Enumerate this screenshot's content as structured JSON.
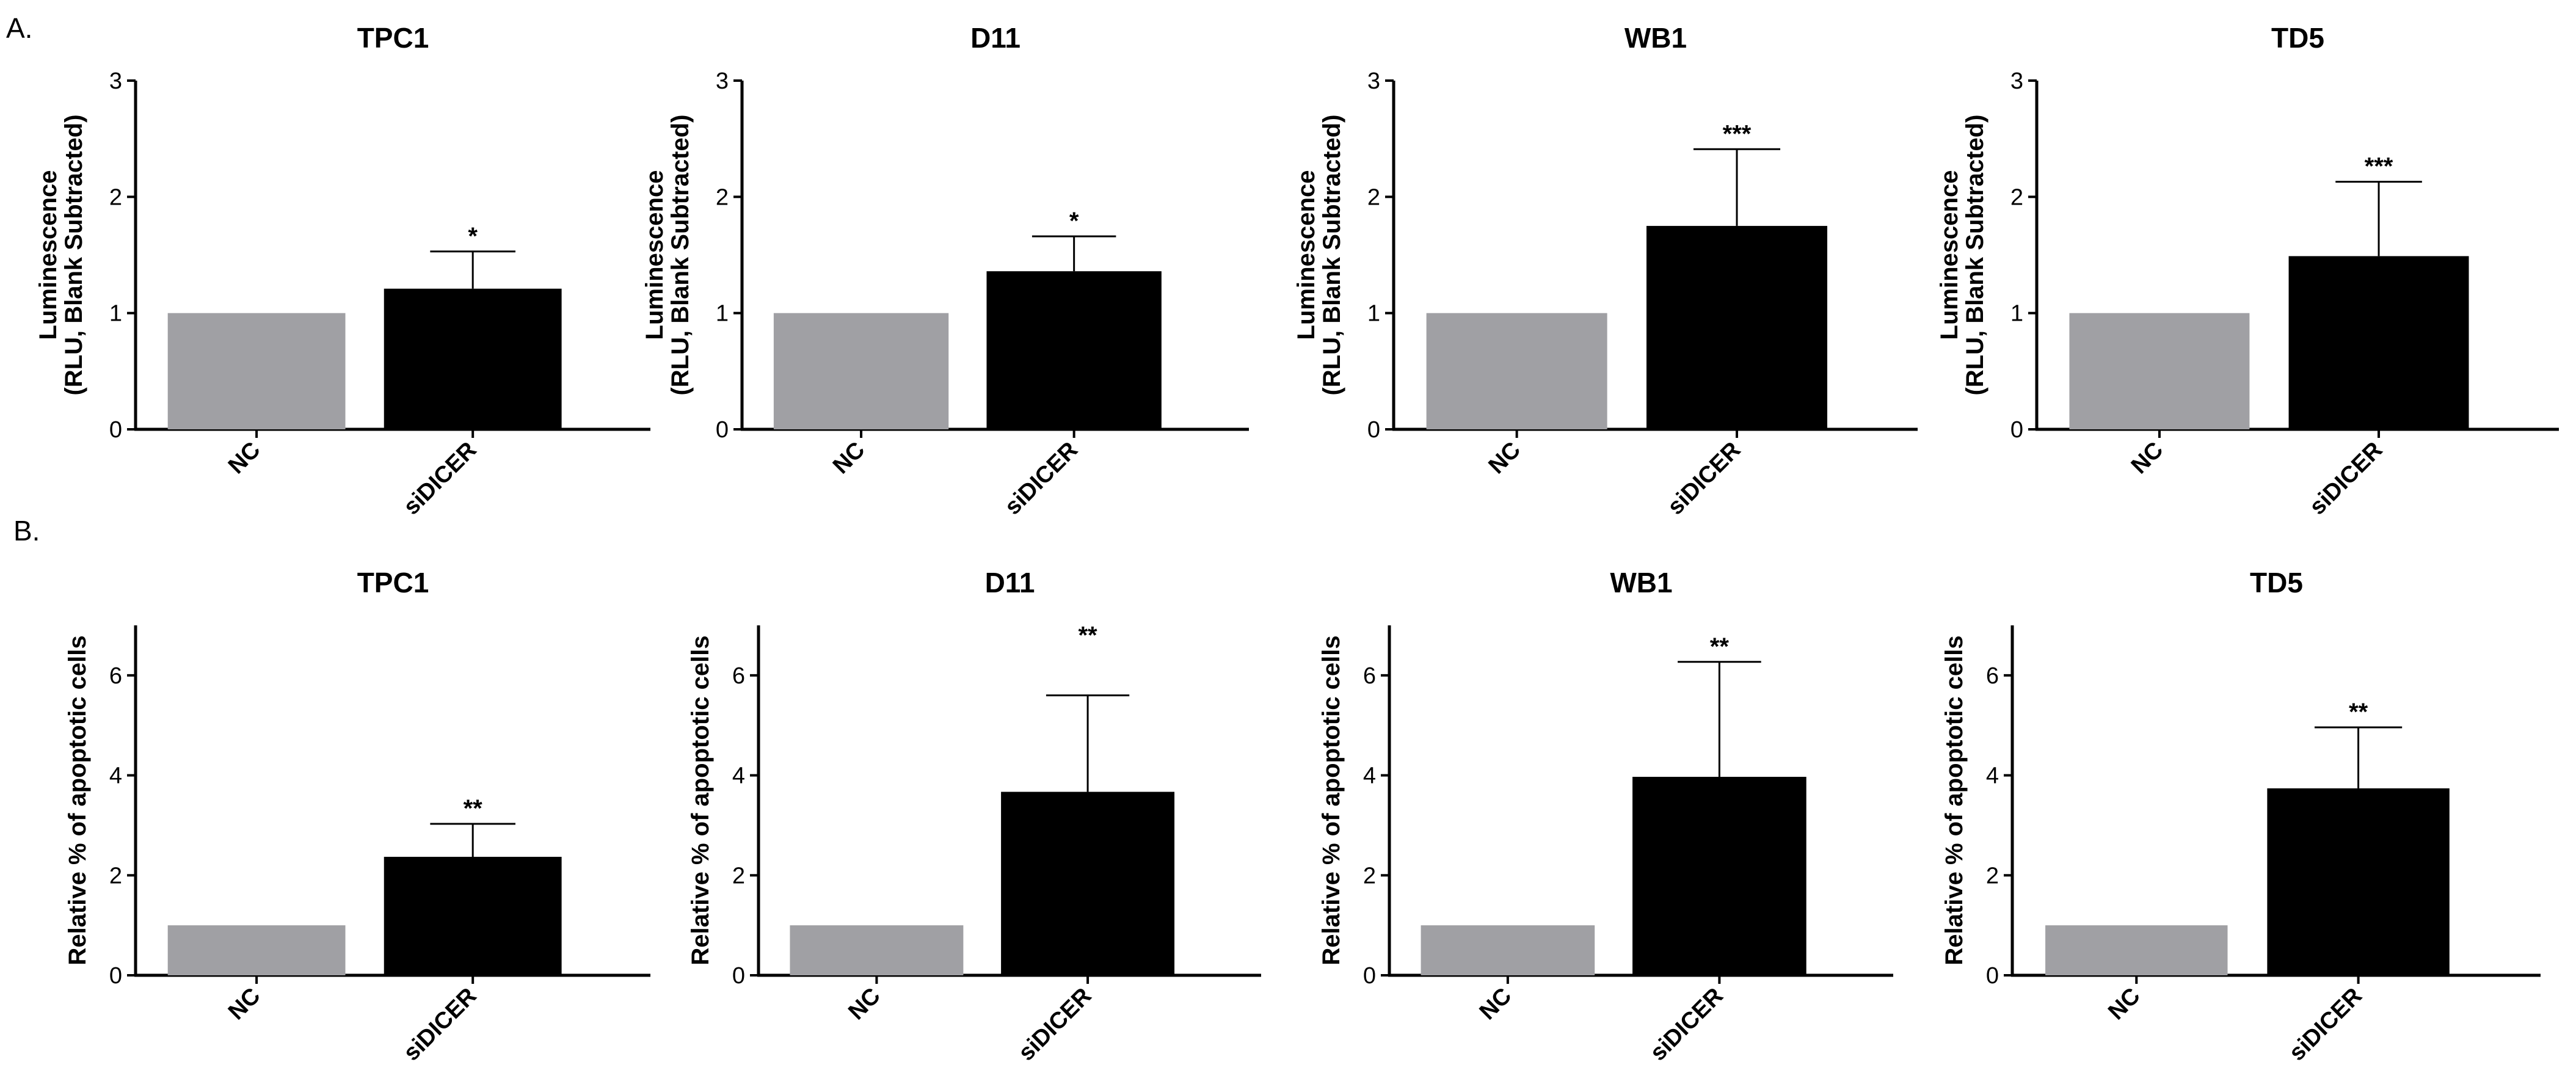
{
  "panel_labels": [
    "A.",
    "B."
  ],
  "colors": {
    "control_bar": "#a0a0a4",
    "treatment_bar": "#000000",
    "axis": "#000000"
  },
  "chart_data": [
    {
      "panel": "A.",
      "type": "bar",
      "title": "TPC1",
      "ylabel_lines": [
        "Luminescence",
        "(RLU, Blank Subtracted)"
      ],
      "categories": [
        "NC",
        "siDICER"
      ],
      "values": [
        1.0,
        1.21
      ],
      "errors": [
        0,
        0.32
      ],
      "significance": [
        "",
        "*"
      ],
      "ylim": [
        0,
        3
      ],
      "yticks": [
        0,
        1,
        2,
        3
      ]
    },
    {
      "panel": "A.",
      "type": "bar",
      "title": "D11",
      "ylabel_lines": [
        "Luminescence",
        "(RLU, Blank Subtracted)"
      ],
      "categories": [
        "NC",
        "siDICER"
      ],
      "values": [
        1.0,
        1.36
      ],
      "errors": [
        0,
        0.3
      ],
      "significance": [
        "",
        "*"
      ],
      "ylim": [
        0,
        3
      ],
      "yticks": [
        0,
        1,
        2,
        3
      ]
    },
    {
      "panel": "A.",
      "type": "bar",
      "title": "WB1",
      "ylabel_lines": [
        "Luminescence",
        "(RLU, Blank Subtracted)"
      ],
      "categories": [
        "NC",
        "siDICER"
      ],
      "values": [
        1.0,
        1.75
      ],
      "errors": [
        0,
        0.66
      ],
      "significance": [
        "",
        "***"
      ],
      "ylim": [
        0,
        3
      ],
      "yticks": [
        0,
        1,
        2,
        3
      ]
    },
    {
      "panel": "A.",
      "type": "bar",
      "title": "TD5",
      "ylabel_lines": [
        "Luminescence",
        "(RLU, Blank Subtracted)"
      ],
      "categories": [
        "NC",
        "siDICER"
      ],
      "values": [
        1.0,
        1.49
      ],
      "errors": [
        0,
        0.64
      ],
      "significance": [
        "",
        "***"
      ],
      "ylim": [
        0,
        3
      ],
      "yticks": [
        0,
        1,
        2,
        3
      ]
    },
    {
      "panel": "B.",
      "type": "bar",
      "title": "TPC1",
      "ylabel_lines": [
        "Relative % of apoptotic cells"
      ],
      "categories": [
        "NC",
        "siDICER"
      ],
      "values": [
        1.0,
        2.37
      ],
      "errors": [
        0,
        0.66
      ],
      "significance": [
        "",
        "**"
      ],
      "ylim": [
        0,
        7
      ],
      "yticks": [
        0,
        2,
        4,
        6
      ]
    },
    {
      "panel": "B.",
      "type": "bar",
      "title": "D11",
      "ylabel_lines": [
        "Relative % of apoptotic cells"
      ],
      "categories": [
        "NC",
        "siDICER"
      ],
      "values": [
        1.0,
        3.67
      ],
      "errors": [
        0,
        1.93
      ],
      "significance": [
        "",
        "**"
      ],
      "ylim": [
        0,
        7
      ],
      "yticks": [
        0,
        2,
        4,
        6
      ]
    },
    {
      "panel": "B.",
      "type": "bar",
      "title": "WB1",
      "ylabel_lines": [
        "Relative % of apoptotic cells"
      ],
      "categories": [
        "NC",
        "siDICER"
      ],
      "values": [
        1.0,
        3.97
      ],
      "errors": [
        0,
        2.3
      ],
      "significance": [
        "",
        "**"
      ],
      "ylim": [
        0,
        7
      ],
      "yticks": [
        0,
        2,
        4,
        6
      ]
    },
    {
      "panel": "B.",
      "type": "bar",
      "title": "TD5",
      "ylabel_lines": [
        "Relative % of apoptotic cells"
      ],
      "categories": [
        "NC",
        "siDICER"
      ],
      "values": [
        1.0,
        3.74
      ],
      "errors": [
        0,
        1.22
      ],
      "significance": [
        "",
        "**"
      ],
      "ylim": [
        0,
        7
      ],
      "yticks": [
        0,
        2,
        4,
        6
      ]
    }
  ]
}
